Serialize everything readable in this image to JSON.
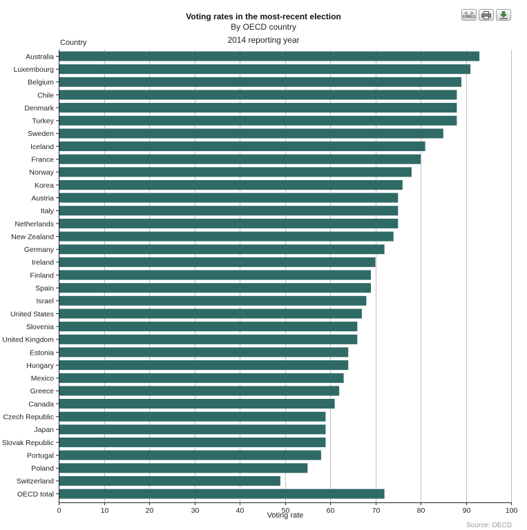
{
  "toolbar": {
    "embed_icon_text": "< >",
    "embed_icon_subtext": "EMBED",
    "icons": [
      "embed-icon",
      "print-icon",
      "download-icon"
    ]
  },
  "source": "Source: OECD",
  "chart_data": {
    "type": "bar",
    "orientation": "horizontal",
    "title": "Voting rates in the most-recent election",
    "subtitle": "By OECD country",
    "period": "2014 reporting year",
    "ylabel": "Country",
    "xlabel": "Voting rate",
    "xlim": [
      0,
      100
    ],
    "xticks": [
      0,
      10,
      20,
      30,
      40,
      50,
      60,
      70,
      80,
      90,
      100
    ],
    "grid": "vertical",
    "bar_color": "#2f6a66",
    "categories": [
      "Australia",
      "Luxembourg",
      "Belgium",
      "Chile",
      "Denmark",
      "Turkey",
      "Sweden",
      "Iceland",
      "France",
      "Norway",
      "Korea",
      "Austria",
      "Italy",
      "Netherlands",
      "New Zealand",
      "Germany",
      "Ireland",
      "Finland",
      "Spain",
      "Israel",
      "United States",
      "Slovenia",
      "United Kingdom",
      "Estonia",
      "Hungary",
      "Mexico",
      "Greece",
      "Canada",
      "Czech Republic",
      "Japan",
      "Slovak Republic",
      "Portugal",
      "Poland",
      "Switzerland",
      "OECD total"
    ],
    "values": [
      93,
      91,
      89,
      88,
      88,
      88,
      85,
      81,
      80,
      78,
      76,
      75,
      75,
      75,
      74,
      72,
      70,
      69,
      69,
      68,
      67,
      66,
      66,
      64,
      64,
      63,
      62,
      61,
      59,
      59,
      59,
      58,
      55,
      49,
      72
    ]
  }
}
